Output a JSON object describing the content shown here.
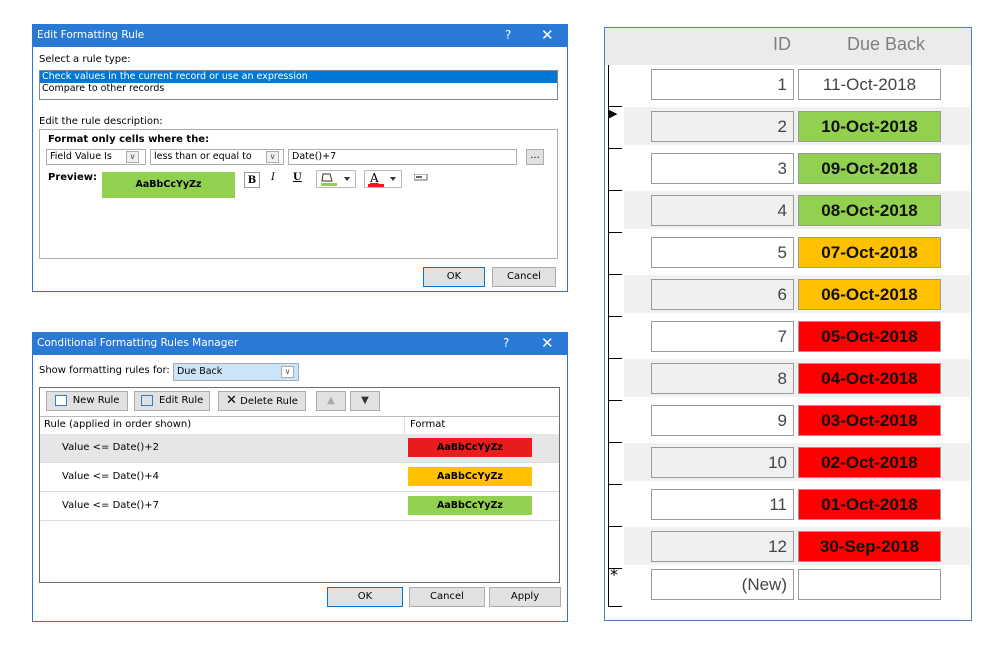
{
  "edit_rule": {
    "title": "Edit Formatting Rule",
    "help": "?",
    "close": "✕",
    "select_type_label": "Select a rule type:",
    "rule_types": [
      "Check values in the current record or use an expression",
      "Compare to other records"
    ],
    "description_label": "Edit the rule description:",
    "format_only_label": "Format only cells where the:",
    "field_combo": "Field Value Is",
    "operator_combo": "less than or equal to",
    "expression": "Date()+7",
    "builder_button": "...",
    "preview_label": "Preview:",
    "preview_text": "AaBbCcYyZz",
    "preview_color": "#92d050",
    "bold_btn": "B",
    "italic_btn": "I",
    "underline_btn": "U",
    "fontcolor_btn": "A",
    "ok": "OK",
    "cancel": "Cancel"
  },
  "rules_manager": {
    "title": "Conditional Formatting Rules Manager",
    "help": "?",
    "close": "✕",
    "show_for_label": "Show formatting rules for:",
    "show_for_value": "Due Back",
    "new_rule": "New Rule",
    "edit_rule": "Edit Rule",
    "delete_rule": "Delete Rule",
    "col_rule": "Rule (applied in order shown)",
    "col_format": "Format",
    "rules": [
      {
        "text": "Value <= Date()+2",
        "sample": "AaBbCcYyZz",
        "color": "#e81c1c"
      },
      {
        "text": "Value <= Date()+4",
        "sample": "AaBbCcYyZz",
        "color": "#ffc000"
      },
      {
        "text": "Value <= Date()+7",
        "sample": "AaBbCcYyZz",
        "color": "#92d050"
      }
    ],
    "ok": "OK",
    "cancel": "Cancel",
    "apply": "Apply"
  },
  "datasheet": {
    "col_id": "ID",
    "col_due": "Due Back",
    "rows": [
      {
        "id": "1",
        "due": "11-Oct-2018",
        "color": "#ffffff",
        "bold": false
      },
      {
        "id": "2",
        "due": "10-Oct-2018",
        "color": "#92d050",
        "bold": true
      },
      {
        "id": "3",
        "due": "09-Oct-2018",
        "color": "#92d050",
        "bold": true
      },
      {
        "id": "4",
        "due": "08-Oct-2018",
        "color": "#92d050",
        "bold": true
      },
      {
        "id": "5",
        "due": "07-Oct-2018",
        "color": "#ffc000",
        "bold": true
      },
      {
        "id": "6",
        "due": "06-Oct-2018",
        "color": "#ffc000",
        "bold": true
      },
      {
        "id": "7",
        "due": "05-Oct-2018",
        "color": "#ff0000",
        "bold": true
      },
      {
        "id": "8",
        "due": "04-Oct-2018",
        "color": "#ff0000",
        "bold": true
      },
      {
        "id": "9",
        "due": "03-Oct-2018",
        "color": "#ff0000",
        "bold": true
      },
      {
        "id": "10",
        "due": "02-Oct-2018",
        "color": "#ff0000",
        "bold": true
      },
      {
        "id": "11",
        "due": "01-Oct-2018",
        "color": "#ff0000",
        "bold": true
      },
      {
        "id": "12",
        "due": "30-Sep-2018",
        "color": "#ff0000",
        "bold": true
      }
    ],
    "new_row_id": "(New)",
    "new_row_marker": "*",
    "current_row_marker": "▶"
  }
}
